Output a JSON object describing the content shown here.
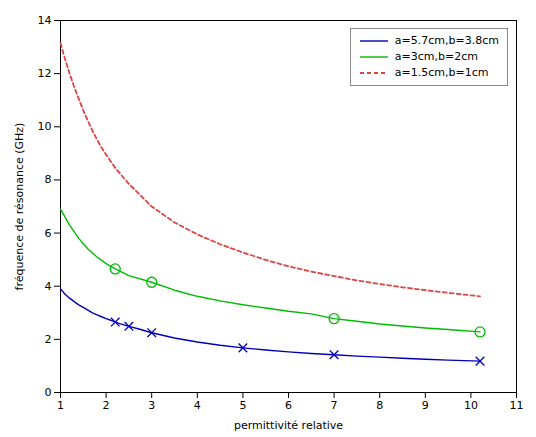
{
  "chart_data": {
    "type": "line",
    "title": "",
    "xlabel": "permittivité relative",
    "ylabel": "fréquence de résonance (GHz)",
    "xlim": [
      1,
      11
    ],
    "ylim": [
      0,
      14
    ],
    "xticks": [
      1,
      2,
      3,
      4,
      5,
      6,
      7,
      8,
      9,
      10,
      11
    ],
    "yticks": [
      0,
      2,
      4,
      6,
      8,
      10,
      12,
      14
    ],
    "grid": false,
    "legend": "upper right",
    "series": [
      {
        "name": "a=5.7cm,b=3.8cm",
        "color": "#0000bb",
        "line_style": "solid",
        "marker": "x",
        "x": [
          1.0,
          1.1,
          1.2,
          1.3,
          1.4,
          1.5,
          1.6,
          1.7,
          1.8,
          1.9,
          2.0,
          2.1,
          2.2,
          2.3,
          2.5,
          2.7,
          3.0,
          3.5,
          4.0,
          4.5,
          5.0,
          5.5,
          6.0,
          6.5,
          7.0,
          7.5,
          8.0,
          8.5,
          9.0,
          9.5,
          10.2
        ],
        "values": [
          3.9,
          3.7,
          3.55,
          3.42,
          3.3,
          3.2,
          3.1,
          3.0,
          2.92,
          2.85,
          2.78,
          2.72,
          2.65,
          2.59,
          2.49,
          2.4,
          2.25,
          2.05,
          1.9,
          1.78,
          1.68,
          1.6,
          1.53,
          1.47,
          1.42,
          1.37,
          1.33,
          1.29,
          1.25,
          1.22,
          1.18
        ],
        "marker_x": [
          2.2,
          2.5,
          3.0,
          5.0,
          7.0,
          10.2
        ],
        "marker_values": [
          2.65,
          2.49,
          2.25,
          1.68,
          1.42,
          1.18
        ]
      },
      {
        "name": "a=3cm,b=2cm",
        "color": "#00bb00",
        "line_style": "solid",
        "marker": "circle",
        "x": [
          1.0,
          1.2,
          1.4,
          1.6,
          1.8,
          2.0,
          2.2,
          2.5,
          3.0,
          3.5,
          4.0,
          4.5,
          5.0,
          5.5,
          6.0,
          6.5,
          7.0,
          7.5,
          8.0,
          8.5,
          9.0,
          9.5,
          10.2
        ],
        "values": [
          6.9,
          6.3,
          5.8,
          5.4,
          5.1,
          4.85,
          4.65,
          4.4,
          4.15,
          3.85,
          3.62,
          3.45,
          3.3,
          3.18,
          3.06,
          2.96,
          2.78,
          2.68,
          2.58,
          2.5,
          2.43,
          2.37,
          2.28
        ],
        "marker_x": [
          2.2,
          3.0,
          7.0,
          10.2
        ],
        "marker_values": [
          4.65,
          4.15,
          2.78,
          2.28
        ]
      },
      {
        "name": "a=1.5cm,b=1cm",
        "color": "#dd4444",
        "line_style": "dashed",
        "x": [
          1.0,
          1.1,
          1.2,
          1.3,
          1.4,
          1.5,
          1.6,
          1.7,
          1.8,
          1.9,
          2.0,
          2.2,
          2.5,
          3.0,
          3.5,
          4.0,
          4.5,
          5.0,
          5.5,
          6.0,
          6.5,
          7.0,
          7.5,
          8.0,
          8.5,
          9.0,
          9.5,
          10.2
        ],
        "values": [
          13.15,
          12.55,
          12.0,
          11.5,
          11.05,
          10.62,
          10.22,
          9.86,
          9.52,
          9.22,
          8.95,
          8.45,
          7.85,
          7.0,
          6.4,
          5.95,
          5.58,
          5.27,
          4.99,
          4.75,
          4.55,
          4.38,
          4.22,
          4.08,
          3.96,
          3.85,
          3.75,
          3.62
        ]
      }
    ]
  }
}
